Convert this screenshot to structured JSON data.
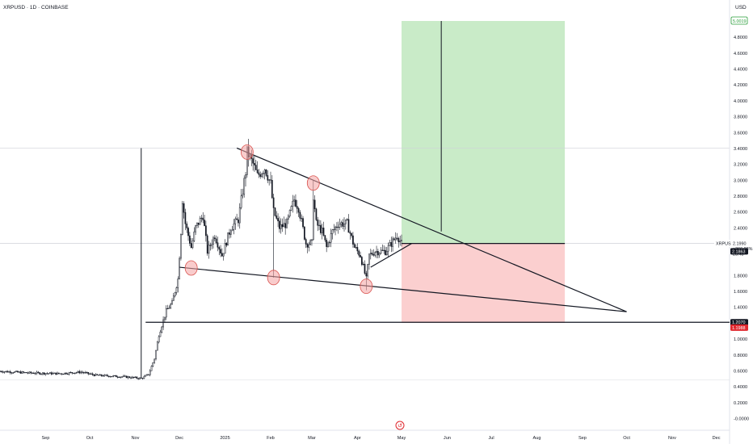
{
  "header": {
    "symbol_label": "XRPUSD · 1D · COINBASE",
    "currency": "USD"
  },
  "colors": {
    "candle": "#131722",
    "long_profit_zone": "#c9ebc8",
    "long_risk_zone": "#fbcfcf",
    "annotation_circle": "#f4a3a3",
    "axis_text": "#131722",
    "price_tag_bg": "#131722",
    "green_tag": "#2a9d3a",
    "red_tag": "#e0282e"
  },
  "chart_data": {
    "type": "candlestick",
    "symbol": "XRPUSD",
    "interval": "1D",
    "exchange": "COINBASE",
    "ylim": [
      -0.1,
      5.2
    ],
    "xlim": [
      "2024-08-01",
      "2025-12-10"
    ],
    "y_ticks": [
      "4.8000",
      "4.6000",
      "4.4000",
      "4.2000",
      "4.0000",
      "3.8000",
      "3.6000",
      "3.4000",
      "3.2000",
      "3.0000",
      "2.8000",
      "2.6000",
      "2.4000",
      "2.2000",
      "1.8000",
      "1.6000",
      "1.4000",
      "1.0000",
      "0.8000",
      "0.6000",
      "0.4000",
      "0.2000",
      "-0.0000"
    ],
    "x_ticks": [
      {
        "label": "Sep",
        "date": "2024-09-01"
      },
      {
        "label": "Oct",
        "date": "2024-10-01"
      },
      {
        "label": "Nov",
        "date": "2024-11-01"
      },
      {
        "label": "Dec",
        "date": "2024-12-01"
      },
      {
        "label": "2025",
        "date": "2025-01-01"
      },
      {
        "label": "Feb",
        "date": "2025-02-01"
      },
      {
        "label": "Mar",
        "date": "2025-03-01"
      },
      {
        "label": "Apr",
        "date": "2025-04-01"
      },
      {
        "label": "May",
        "date": "2025-05-01"
      },
      {
        "label": "Jun",
        "date": "2025-06-01"
      },
      {
        "label": "Jul",
        "date": "2025-07-01"
      },
      {
        "label": "Aug",
        "date": "2025-08-01"
      },
      {
        "label": "Sep",
        "date": "2025-09-01"
      },
      {
        "label": "Oct",
        "date": "2025-10-01"
      },
      {
        "label": "Nov",
        "date": "2025-11-01"
      },
      {
        "label": "Dec",
        "date": "2025-12-01"
      }
    ],
    "price_anchors": [
      [
        "2024-08-01",
        0.59
      ],
      [
        "2024-08-20",
        0.57
      ],
      [
        "2024-09-10",
        0.56
      ],
      [
        "2024-09-25",
        0.58
      ],
      [
        "2024-10-05",
        0.54
      ],
      [
        "2024-10-25",
        0.52
      ],
      [
        "2024-11-05",
        0.5
      ],
      [
        "2024-11-10",
        0.55
      ],
      [
        "2024-11-14",
        0.75
      ],
      [
        "2024-11-17",
        1.05
      ],
      [
        "2024-11-22",
        1.35
      ],
      [
        "2024-11-26",
        1.45
      ],
      [
        "2024-11-30",
        1.75
      ],
      [
        "2024-12-02",
        2.35
      ],
      [
        "2024-12-03",
        2.75
      ],
      [
        "2024-12-05",
        2.45
      ],
      [
        "2024-12-09",
        2.15
      ],
      [
        "2024-12-12",
        2.4
      ],
      [
        "2024-12-17",
        2.55
      ],
      [
        "2024-12-20",
        2.1
      ],
      [
        "2024-12-25",
        2.3
      ],
      [
        "2024-12-30",
        2.05
      ],
      [
        "2025-01-05",
        2.4
      ],
      [
        "2025-01-10",
        2.5
      ],
      [
        "2025-01-15",
        3.1
      ],
      [
        "2025-01-16",
        3.35
      ],
      [
        "2025-01-20",
        3.2
      ],
      [
        "2025-01-23",
        3.05
      ],
      [
        "2025-01-28",
        3.15
      ],
      [
        "2025-02-01",
        2.95
      ],
      [
        "2025-02-03",
        2.6
      ],
      [
        "2025-02-07",
        2.4
      ],
      [
        "2025-02-12",
        2.45
      ],
      [
        "2025-02-17",
        2.75
      ],
      [
        "2025-02-20",
        2.65
      ],
      [
        "2025-02-25",
        2.2
      ],
      [
        "2025-03-01",
        2.2
      ],
      [
        "2025-03-02",
        2.8
      ],
      [
        "2025-03-04",
        2.45
      ],
      [
        "2025-03-08",
        2.35
      ],
      [
        "2025-03-11",
        2.15
      ],
      [
        "2025-03-15",
        2.35
      ],
      [
        "2025-03-19",
        2.45
      ],
      [
        "2025-03-25",
        2.45
      ],
      [
        "2025-03-30",
        2.15
      ],
      [
        "2025-04-03",
        2.05
      ],
      [
        "2025-04-07",
        1.75
      ],
      [
        "2025-04-09",
        2.05
      ],
      [
        "2025-04-13",
        2.1
      ],
      [
        "2025-04-20",
        2.1
      ],
      [
        "2025-04-24",
        2.2
      ],
      [
        "2025-04-28",
        2.3
      ],
      [
        "2025-05-01",
        2.2
      ]
    ],
    "spikes": [
      {
        "date": "2025-02-03",
        "low": 1.77
      },
      {
        "date": "2025-04-07",
        "low": 1.61
      },
      {
        "date": "2025-01-16",
        "high": 3.4
      },
      {
        "date": "2025-03-02",
        "high": 2.99
      }
    ],
    "trendlines": [
      {
        "name": "descending-resistance",
        "from": [
          "2025-01-09",
          3.4
        ],
        "to": [
          "2025-10-01",
          1.34
        ]
      },
      {
        "name": "descending-support",
        "from": [
          "2024-12-01",
          1.9
        ],
        "to": [
          "2025-10-01",
          1.34
        ]
      },
      {
        "name": "rising-micro-support",
        "from": [
          "2025-04-10",
          1.9
        ],
        "to": [
          "2025-05-08",
          2.2
        ]
      }
    ],
    "horizontal_lines": [
      {
        "name": "entry-level",
        "price": 2.199,
        "from": "2025-05-01"
      },
      {
        "name": "stop-level",
        "price": 1.207,
        "from": "2024-11-08"
      }
    ],
    "vertical_lines": [
      {
        "name": "rally-start-marker",
        "date": "2024-11-05",
        "from": 0.5,
        "to": 3.4
      }
    ],
    "crosshair": {
      "horizontal_price": 3.4
    },
    "position_tool": {
      "type": "long",
      "entry": 2.199,
      "target": 5.0,
      "stop": 1.198,
      "from": "2025-05-01",
      "to": "2025-08-20",
      "projection_line": {
        "date": "2025-05-28",
        "from": 2.35,
        "to": 5.0
      }
    },
    "circles": [
      {
        "date": "2025-01-16",
        "price": 3.35
      },
      {
        "date": "2025-03-02",
        "price": 2.96
      },
      {
        "date": "2024-12-09",
        "price": 1.89
      },
      {
        "date": "2025-02-03",
        "price": 1.77
      },
      {
        "date": "2025-04-07",
        "price": 1.66
      }
    ],
    "price_tags": [
      {
        "name": "target-tag",
        "label": "5.0019",
        "price": 5.0,
        "style": "green"
      },
      {
        "name": "current-price-tag",
        "label": "XRPUSD",
        "value": "2.1990",
        "change": "+266.28%",
        "countdown": "25:43",
        "price": 2.199,
        "style": "dark"
      },
      {
        "name": "entry-level-tag",
        "label": "2.1863",
        "price": 2.1,
        "style": "dark"
      },
      {
        "name": "stop-level-tag",
        "label": "1.2070",
        "price": 1.207,
        "style": "dark"
      },
      {
        "name": "stop-red-tag",
        "label": "1.1988",
        "price": 1.15,
        "style": "red"
      }
    ]
  }
}
